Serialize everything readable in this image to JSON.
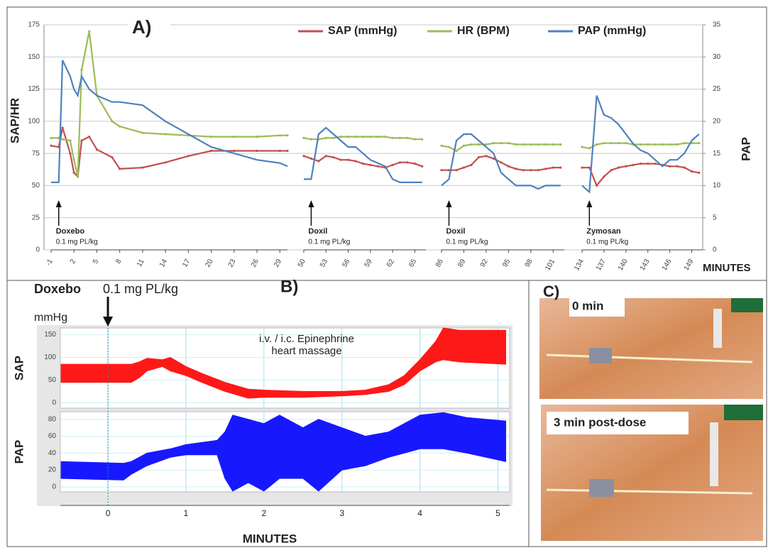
{
  "chart_data": [
    {
      "type": "line",
      "title": "A)",
      "ylabel": "SAP/HR",
      "y2label": "PAP",
      "xlabel": "MINUTES",
      "ylim": [
        0,
        175
      ],
      "yticks": [
        0,
        25,
        50,
        75,
        100,
        125,
        150,
        175
      ],
      "y2lim": [
        0,
        35
      ],
      "y2ticks": [
        0,
        5,
        10,
        15,
        20,
        25,
        30,
        35
      ],
      "grid": true,
      "series": [
        {
          "name": "SAP (mmHg)",
          "color": "#c0504d"
        },
        {
          "name": "HR (BPM)",
          "color": "#9bbb59"
        },
        {
          "name": "PAP (mmHg)",
          "color": "#4f81bd",
          "axis": "y2"
        }
      ],
      "segments": [
        {
          "label": "Doxebo",
          "dose": "0.1 mg PL/kg",
          "dose_time": 0,
          "xlim": [
            -1,
            30
          ],
          "xticks": [
            -1,
            2,
            5,
            8,
            11,
            14,
            17,
            20,
            23,
            26,
            29
          ],
          "x": [
            -1,
            0,
            0.5,
            1.5,
            2,
            2.5,
            3,
            4,
            5,
            7,
            8,
            11,
            14,
            17,
            20,
            23,
            26,
            29,
            30
          ],
          "series": [
            {
              "values": [
                81,
                80,
                95,
                75,
                60,
                57,
                85,
                88,
                78,
                72,
                63,
                64,
                68,
                73,
                77,
                77,
                77,
                77,
                77
              ]
            },
            {
              "values": [
                87,
                87,
                86,
                85,
                70,
                57,
                140,
                170,
                120,
                100,
                96,
                91,
                90,
                89,
                88,
                88,
                88,
                89,
                89
              ]
            },
            {
              "values": [
                10.5,
                10.5,
                29.5,
                27,
                25,
                24,
                27,
                25,
                24,
                23,
                23,
                22.5,
                20,
                18,
                16,
                15,
                14,
                13.5,
                13
              ]
            }
          ]
        },
        {
          "label": "Doxil",
          "dose": "0.1 mg PL/kg",
          "dose_time": 51,
          "xlim": [
            50,
            66.5
          ],
          "xticks": [
            50,
            53,
            56,
            59,
            62,
            65
          ],
          "x": [
            50,
            51,
            52,
            53,
            54,
            55,
            56,
            57,
            58,
            59,
            60,
            61,
            62,
            63,
            64,
            65,
            66
          ],
          "series": [
            {
              "values": [
                73,
                71,
                69,
                73,
                72,
                70,
                70,
                69,
                67,
                66,
                65,
                64,
                66,
                68,
                68,
                67,
                65
              ]
            },
            {
              "values": [
                87,
                86,
                86,
                87,
                87,
                88,
                88,
                88,
                88,
                88,
                88,
                88,
                87,
                87,
                87,
                86,
                86
              ]
            },
            {
              "values": [
                11,
                11,
                18,
                19,
                18,
                17,
                16,
                16,
                15,
                14,
                13.5,
                13,
                11,
                10.5,
                10.5,
                10.5,
                10.5
              ]
            }
          ]
        },
        {
          "label": "Doxil",
          "dose": "0.1 mg PL/kg",
          "dose_time": 87,
          "xlim": [
            86,
            102.5
          ],
          "xticks": [
            86,
            89,
            92,
            95,
            98,
            101
          ],
          "x": [
            86,
            87,
            88,
            89,
            90,
            91,
            92,
            93,
            94,
            95,
            96,
            97,
            98,
            99,
            100,
            101,
            102
          ],
          "series": [
            {
              "values": [
                62,
                62,
                62,
                64,
                66,
                72,
                73,
                71,
                68,
                65,
                63,
                62,
                62,
                62,
                63,
                64,
                64
              ]
            },
            {
              "values": [
                81,
                80,
                77,
                81,
                82,
                82,
                82,
                83,
                83,
                83,
                82,
                82,
                82,
                82,
                82,
                82,
                82
              ]
            },
            {
              "values": [
                10,
                11,
                17,
                18,
                18,
                17,
                16,
                15,
                12,
                11,
                10,
                10,
                10,
                9.5,
                10,
                10,
                10
              ]
            }
          ]
        },
        {
          "label": "Zymosan",
          "dose": "0.1 mg PL/kg",
          "dose_time": 135,
          "xlim": [
            134,
            150.5
          ],
          "xticks": [
            134,
            137,
            140,
            143,
            146,
            149
          ],
          "x": [
            134,
            135,
            136,
            137,
            138,
            139,
            140,
            141,
            142,
            143,
            144,
            145,
            146,
            147,
            148,
            149,
            150
          ],
          "series": [
            {
              "values": [
                64,
                64,
                50,
                57,
                62,
                64,
                65,
                66,
                67,
                67,
                67,
                66,
                65,
                65,
                64,
                61,
                60
              ]
            },
            {
              "values": [
                80,
                79,
                82,
                83,
                83,
                83,
                83,
                82,
                82,
                82,
                82,
                82,
                82,
                82,
                83,
                83,
                83
              ]
            },
            {
              "values": [
                10,
                9,
                24,
                21,
                20.5,
                19.5,
                18,
                16.5,
                15.5,
                15,
                14,
                13,
                14,
                14,
                15,
                17,
                18
              ]
            }
          ]
        }
      ]
    },
    {
      "type": "band",
      "title": "B)",
      "xlabel": "MINUTES",
      "unit": "mmHg",
      "dose_label": "Doxebo",
      "dose": "0.1 mg PL/kg",
      "dose_time": 0,
      "annotation": [
        "i.v. / i.c. Epinephrine",
        "heart massage"
      ],
      "xlim": [
        -0.61,
        5.15
      ],
      "xticks": [
        0,
        1,
        2,
        3,
        4,
        5
      ],
      "subplots": [
        {
          "ylabel": "SAP",
          "color": "#ff0000",
          "ylim": [
            -12,
            165
          ],
          "yticks": [
            0,
            50,
            100,
            150
          ],
          "x": [
            -0.6,
            0.3,
            0.4,
            0.5,
            0.7,
            0.8,
            1,
            1.2,
            1.5,
            1.8,
            2,
            2.5,
            3,
            3.3,
            3.6,
            3.8,
            4,
            4.2,
            4.3,
            4.5,
            5.1
          ],
          "high": [
            85,
            85,
            90,
            98,
            95,
            100,
            80,
            65,
            45,
            30,
            28,
            25,
            25,
            28,
            40,
            60,
            95,
            135,
            165,
            160,
            160
          ],
          "low": [
            45,
            45,
            55,
            70,
            80,
            70,
            60,
            45,
            25,
            10,
            12,
            12,
            15,
            18,
            25,
            40,
            70,
            90,
            95,
            90,
            85
          ]
        },
        {
          "ylabel": "PAP",
          "color": "#0000ff",
          "ylim": [
            -6,
            89
          ],
          "yticks": [
            0,
            20,
            40,
            60,
            80
          ],
          "x": [
            -0.6,
            0.2,
            0.3,
            0.5,
            0.8,
            1,
            1.4,
            1.5,
            1.6,
            1.8,
            2,
            2.2,
            2.5,
            2.7,
            3,
            3.3,
            3.6,
            3.8,
            4,
            4.3,
            4.6,
            5.1
          ],
          "high": [
            30,
            28,
            30,
            40,
            45,
            50,
            55,
            65,
            85,
            80,
            75,
            85,
            70,
            80,
            70,
            60,
            65,
            75,
            85,
            88,
            82,
            78
          ],
          "low": [
            10,
            8,
            15,
            25,
            35,
            38,
            38,
            10,
            -5,
            5,
            -5,
            10,
            10,
            -5,
            20,
            25,
            35,
            40,
            45,
            45,
            40,
            30
          ]
        }
      ]
    }
  ],
  "panel_c": {
    "title": "C)",
    "photos": [
      {
        "label": "0 min"
      },
      {
        "label": "3 min post-dose"
      }
    ]
  }
}
